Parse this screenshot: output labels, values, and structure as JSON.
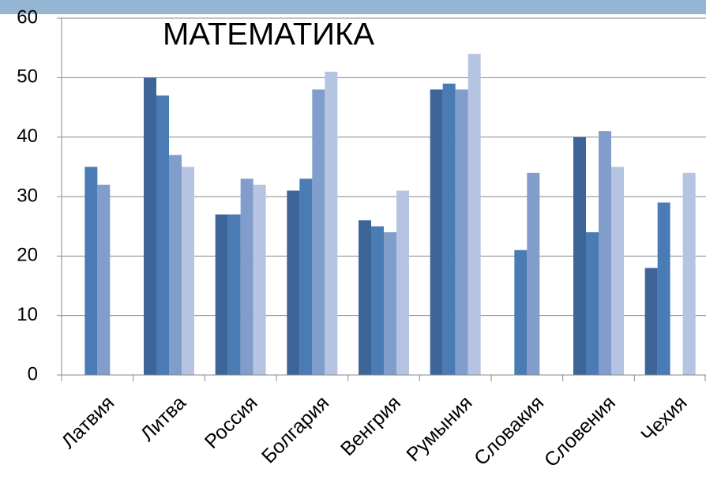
{
  "chart_data": {
    "type": "bar",
    "title": "МАТЕМАТИКА",
    "categories": [
      "Латвия",
      "Литва",
      "Россия",
      "Болгария",
      "Венгрия",
      "Румыния",
      "Словакия",
      "Словения",
      "Чехия"
    ],
    "series": [
      {
        "color": "#3d6597",
        "values": [
          null,
          50,
          27,
          31,
          26,
          48,
          null,
          40,
          18
        ]
      },
      {
        "color": "#4a7bb5",
        "values": [
          35,
          47,
          27,
          33,
          25,
          49,
          21,
          24,
          29
        ]
      },
      {
        "color": "#809dcb",
        "values": [
          32,
          37,
          33,
          48,
          24,
          48,
          34,
          41,
          null
        ]
      },
      {
        "color": "#b5c5e1",
        "values": [
          null,
          35,
          32,
          51,
          31,
          54,
          null,
          35,
          34
        ]
      }
    ],
    "ylim": [
      0,
      60
    ],
    "yticks": [
      0,
      10,
      20,
      30,
      40,
      50,
      60
    ],
    "grid": true
  }
}
